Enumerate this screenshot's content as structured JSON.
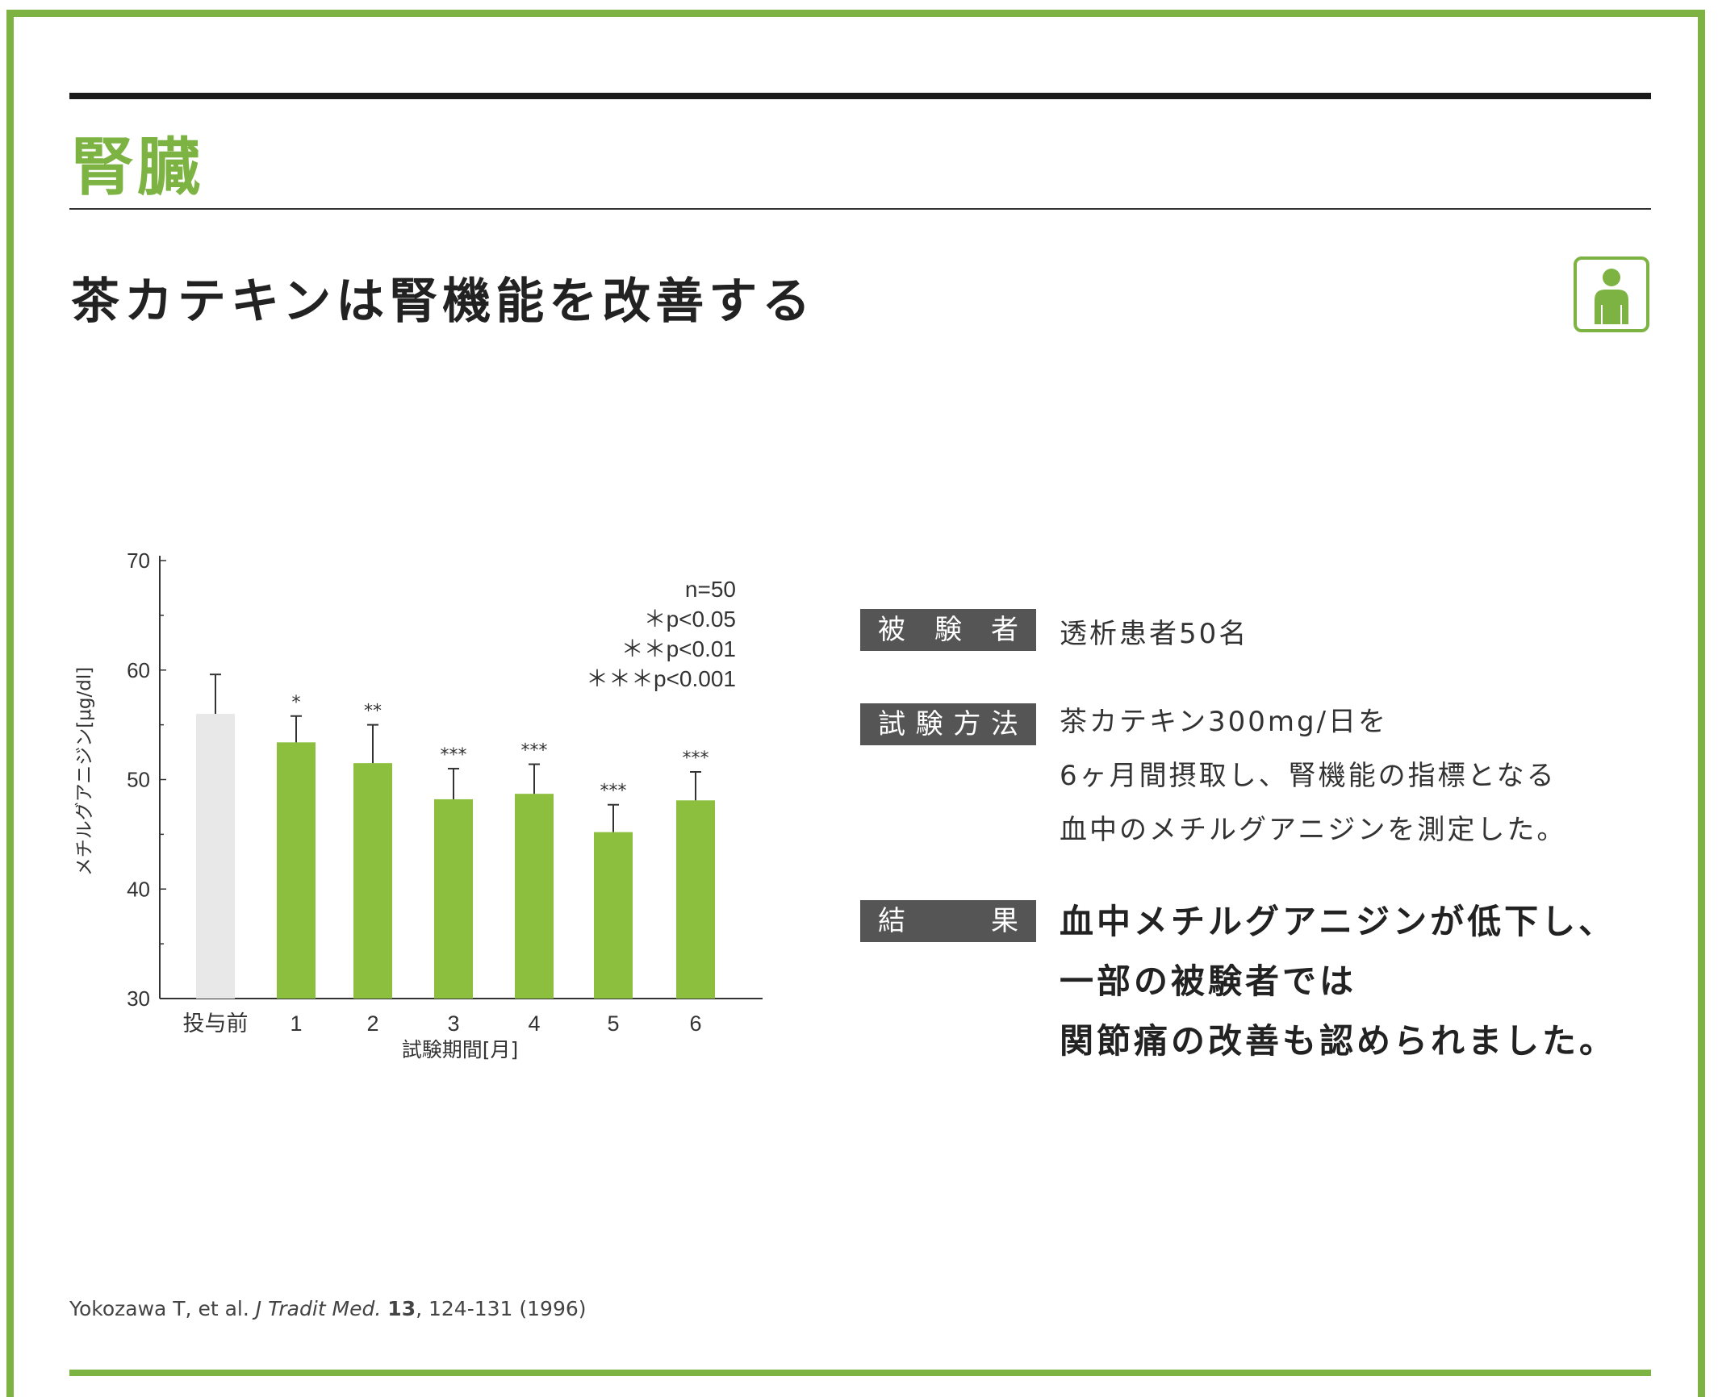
{
  "page": {
    "section_title": "腎臓",
    "headline": "茶カテキンは腎機能を改善する",
    "icon": "person-icon",
    "accent_color": "#7cb342"
  },
  "info": {
    "subjects_label": [
      "被",
      "験",
      "者"
    ],
    "subjects_value": "透析患者50名",
    "method_label": [
      "試",
      "験",
      "方",
      "法"
    ],
    "method_lines": [
      "茶カテキン300mg/日を",
      "6ヶ月間摂取し、腎機能の指標となる",
      "血中のメチルグアニジンを測定した。"
    ],
    "result_label": [
      "結",
      "果"
    ],
    "result_lines": [
      "血中メチルグアニジンが低下し、",
      "一部の被験者では",
      "関節痛の改善も認められました。"
    ]
  },
  "citation": {
    "authors": "Yokozawa T, et al. ",
    "journal": "J Tradit Med.",
    "volume": "13",
    "pages": ", 124-131 (1996)"
  },
  "chart_data": {
    "type": "bar",
    "categories": [
      "投与前",
      "1",
      "2",
      "3",
      "4",
      "5",
      "6"
    ],
    "values": [
      56.0,
      53.4,
      51.5,
      48.2,
      48.7,
      45.2,
      48.1
    ],
    "error_upper": [
      59.6,
      55.8,
      55.0,
      51.0,
      51.4,
      47.7,
      50.7
    ],
    "significance": [
      "",
      "*",
      "**",
      "***",
      "***",
      "***",
      "***"
    ],
    "bar_colors": [
      "#e8e8e8",
      "#8dbf3f",
      "#8dbf3f",
      "#8dbf3f",
      "#8dbf3f",
      "#8dbf3f",
      "#8dbf3f"
    ],
    "xlabel": "試験期間[月]",
    "ylabel": "メチルグアニジン[μg/dl]",
    "ylim": [
      30,
      70
    ],
    "yticks": [
      30,
      40,
      50,
      60,
      70
    ],
    "legend": [
      "n=50",
      "＊p<0.05",
      "＊＊p<0.01",
      "＊＊＊p<0.001"
    ],
    "legend_position": "top-right",
    "grid": false
  }
}
